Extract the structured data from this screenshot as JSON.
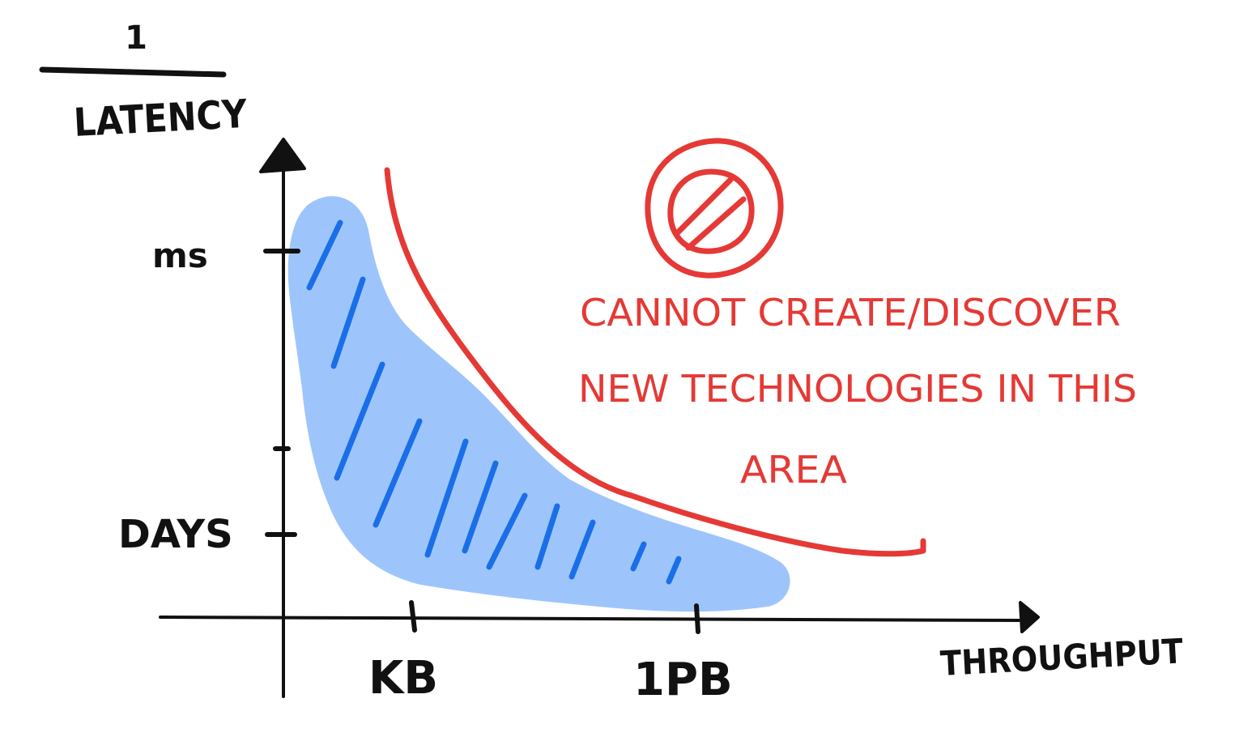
{
  "y_axis": {
    "label_numerator": "1",
    "label_denominator": "LATENCY",
    "ticks": [
      {
        "label": "ms"
      },
      {
        "label": ""
      },
      {
        "label": "DAYS"
      }
    ]
  },
  "x_axis": {
    "label": "THROUGHPUT",
    "ticks": [
      {
        "label": "KB"
      },
      {
        "label": "1PB"
      }
    ]
  },
  "annotation": {
    "icon": "prohibited-icon",
    "lines": [
      "CANNOT CREATE/DISCOVER",
      "NEW TECHNOLOGIES IN THIS",
      "AREA"
    ]
  },
  "colors": {
    "ink": "#111111",
    "boundary": "#e53935",
    "region_fill": "#9ec5fb",
    "region_hatch": "#1a6fe8"
  }
}
